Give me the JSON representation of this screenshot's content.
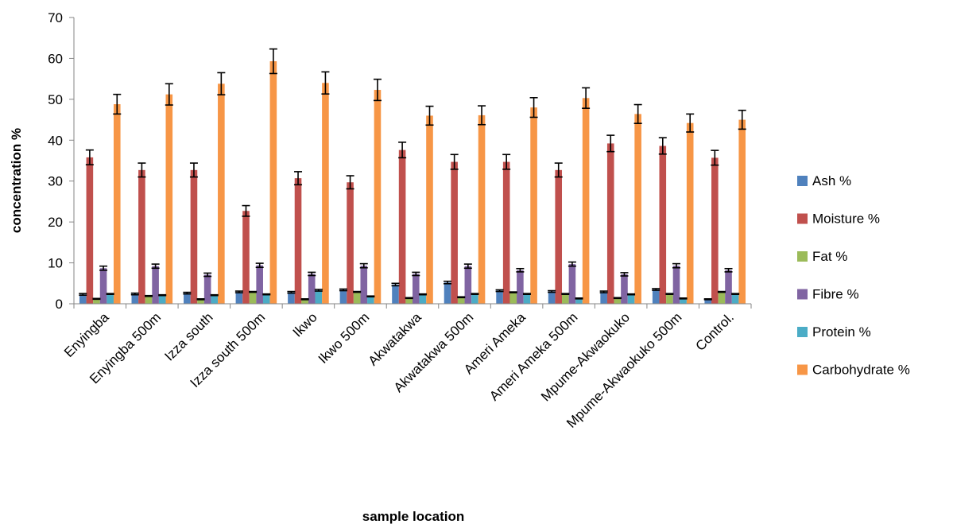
{
  "chart_data": {
    "type": "bar",
    "title": "",
    "xlabel": "sample location",
    "ylabel": "concentration  %",
    "ylim": [
      0,
      70
    ],
    "yticks": [
      "0",
      "10",
      "20",
      "30",
      "40",
      "50",
      "60",
      "70"
    ],
    "grid": false,
    "legend_position": "right",
    "error_bars": true,
    "categories": [
      "Enyingba",
      "Enyingba 500m",
      "Izza south",
      "Izza south 500m",
      "Ikwo",
      "Ikwo 500m",
      "Akwatakwa",
      "Akwatakwa 500m",
      "Ameri Ameka",
      "Ameri Ameka 500m",
      "Mpume-Akwaokuko",
      "Mpume-Akwaokuko 500m",
      "Control."
    ],
    "series": [
      {
        "name": "Ash %",
        "color": "#4f81bd",
        "values": [
          2.3,
          2.4,
          2.6,
          2.9,
          2.8,
          3.4,
          4.7,
          5.2,
          3.2,
          3.0,
          2.9,
          3.5,
          1.1
        ],
        "errors": [
          0.2,
          0.2,
          0.2,
          0.2,
          0.2,
          0.2,
          0.3,
          0.3,
          0.2,
          0.2,
          0.2,
          0.2,
          0.1
        ]
      },
      {
        "name": "Moisture %",
        "color": "#c0504d",
        "values": [
          35.8,
          32.7,
          32.7,
          22.7,
          30.7,
          29.7,
          37.6,
          34.7,
          34.7,
          32.7,
          39.2,
          38.6,
          35.7
        ],
        "errors": [
          1.8,
          1.7,
          1.7,
          1.3,
          1.6,
          1.6,
          1.9,
          1.8,
          1.8,
          1.7,
          2.0,
          2.0,
          1.8
        ]
      },
      {
        "name": "Fat %",
        "color": "#9bbb59",
        "values": [
          1.2,
          1.9,
          1.1,
          2.9,
          1.1,
          2.9,
          1.4,
          1.6,
          2.8,
          2.4,
          1.4,
          2.4,
          2.9
        ],
        "errors": [
          0.1,
          0.1,
          0.1,
          0.1,
          0.1,
          0.1,
          0.1,
          0.1,
          0.1,
          0.1,
          0.1,
          0.1,
          0.1
        ]
      },
      {
        "name": "Fibre %",
        "color": "#8064a2",
        "values": [
          8.7,
          9.2,
          7.1,
          9.4,
          7.3,
          9.3,
          7.3,
          9.2,
          8.2,
          9.7,
          7.2,
          9.3,
          8.2
        ],
        "errors": [
          0.5,
          0.5,
          0.4,
          0.5,
          0.4,
          0.5,
          0.4,
          0.5,
          0.4,
          0.5,
          0.4,
          0.5,
          0.4
        ]
      },
      {
        "name": "Protein %",
        "color": "#4bacc6",
        "values": [
          2.4,
          2.1,
          2.1,
          2.3,
          3.3,
          1.8,
          2.3,
          2.4,
          2.4,
          1.3,
          2.3,
          1.3,
          2.4
        ],
        "errors": [
          0.1,
          0.1,
          0.1,
          0.1,
          0.2,
          0.1,
          0.1,
          0.1,
          0.1,
          0.1,
          0.1,
          0.1,
          0.1
        ]
      },
      {
        "name": "Carbohydrate %",
        "color": "#f79646",
        "values": [
          48.8,
          51.2,
          53.8,
          59.3,
          54.0,
          52.3,
          46.0,
          46.1,
          48.0,
          50.3,
          46.4,
          44.2,
          45.0
        ],
        "errors": [
          2.4,
          2.6,
          2.7,
          3.0,
          2.7,
          2.6,
          2.3,
          2.3,
          2.4,
          2.5,
          2.3,
          2.2,
          2.3
        ]
      }
    ]
  }
}
